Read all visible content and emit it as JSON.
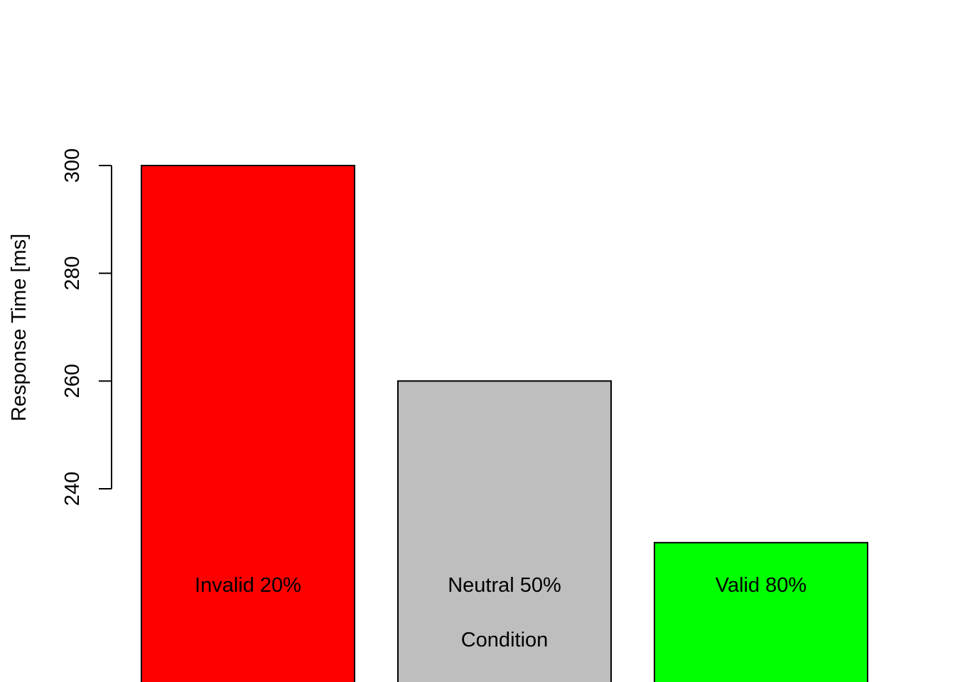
{
  "chart_data": {
    "type": "bar",
    "categories": [
      "Invalid 20%",
      "Neutral 50%",
      "Valid 80%"
    ],
    "values": [
      300,
      260,
      230
    ],
    "colors": [
      "#ff0000",
      "#bebebe",
      "#00ff00"
    ],
    "title": "",
    "xlabel": "Condition",
    "ylabel": "Response Time [ms]",
    "yticks": [
      240,
      260,
      280,
      300
    ],
    "ylim": [
      204.5,
      311
    ],
    "grid": false,
    "legend": "none"
  }
}
